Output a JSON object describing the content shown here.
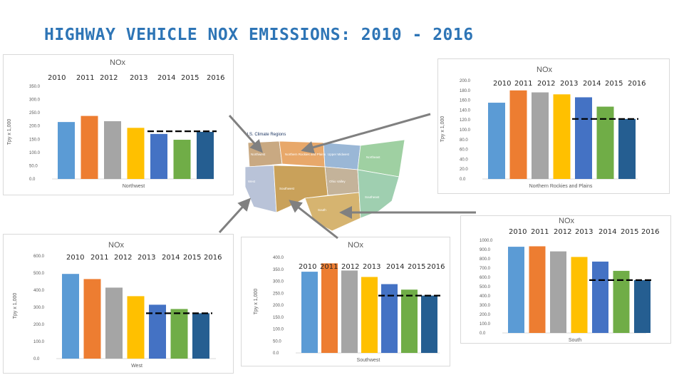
{
  "slide": {
    "title": "HIGHWAY VEHICLE NOX EMISSIONS: 2010 - 2016"
  },
  "years": [
    "2010",
    "2011",
    "2012",
    "2013",
    "2014",
    "2015",
    "2016"
  ],
  "colors": [
    "#5b9bd5",
    "#ed7d31",
    "#a5a5a5",
    "#ffc000",
    "#4472c4",
    "#70ad47",
    "#255e91"
  ],
  "map": {
    "title": "U.S. Climate Regions",
    "regions": [
      "Northwest",
      "Northern Rockies and Plains",
      "Upper Midwest",
      "Ohio Valley",
      "Northeast",
      "West",
      "Southwest",
      "South",
      "Southeast"
    ],
    "colors": [
      "#c9a982",
      "#e8a86a",
      "#9ab7d6",
      "#c4b39a",
      "#9fd0a2",
      "#b9c3d8",
      "#c9a15a",
      "#d6b470",
      "#9fcfb0"
    ]
  },
  "chart_data": [
    {
      "id": "northwest",
      "type": "bar",
      "title": "NOx",
      "xlabel": "Northwest",
      "ylabel": "Tpy x 1,000",
      "categories": [
        "2010",
        "2011",
        "2012",
        "2013",
        "2014",
        "2015",
        "2016"
      ],
      "values": [
        215,
        238,
        218,
        193,
        170,
        148,
        178
      ],
      "ylim": [
        0,
        350
      ],
      "yticks": [
        "0.0",
        "50.0",
        "100.0",
        "150.0",
        "200.0",
        "250.0",
        "300.0",
        "350.0"
      ],
      "reference_level": 180
    },
    {
      "id": "northern-rockies-plains",
      "type": "bar",
      "title": "NOx",
      "xlabel": "Northern Rockies and Plains",
      "ylabel": "Tpy x 1,000",
      "categories": [
        "2010",
        "2011",
        "2012",
        "2013",
        "2014",
        "2015",
        "2016"
      ],
      "values": [
        155,
        180,
        176,
        172,
        166,
        147,
        122
      ],
      "ylim": [
        0,
        200
      ],
      "yticks": [
        "0.0",
        "20.0",
        "40.0",
        "60.0",
        "80.0",
        "100.0",
        "120.0",
        "140.0",
        "160.0",
        "180.0",
        "200.0"
      ],
      "reference_level": 122
    },
    {
      "id": "west",
      "type": "bar",
      "title": "NOx",
      "xlabel": "West",
      "ylabel": "Tpy x 1,000",
      "categories": [
        "2010",
        "2011",
        "2012",
        "2013",
        "2014",
        "2015",
        "2016"
      ],
      "values": [
        495,
        465,
        415,
        365,
        315,
        290,
        265
      ],
      "ylim": [
        0,
        600
      ],
      "yticks": [
        "0.0",
        "100.0",
        "200.0",
        "300.0",
        "400.0",
        "500.0",
        "600.0"
      ],
      "reference_level": 265
    },
    {
      "id": "southwest",
      "type": "bar",
      "title": "NOx",
      "xlabel": "Southwest",
      "ylabel": "Tpy x 1,000",
      "categories": [
        "2010",
        "2011",
        "2012",
        "2013",
        "2014",
        "2015",
        "2016"
      ],
      "values": [
        340,
        375,
        345,
        318,
        288,
        265,
        240
      ],
      "ylim": [
        0,
        400
      ],
      "yticks": [
        "0.0",
        "50.0",
        "100.0",
        "150.0",
        "200.0",
        "250.0",
        "300.0",
        "350.0",
        "400.0"
      ],
      "reference_level": 240
    },
    {
      "id": "south",
      "type": "bar",
      "title": "NOx",
      "xlabel": "South",
      "ylabel": "",
      "categories": [
        "2010",
        "2011",
        "2012",
        "2013",
        "2014",
        "2015",
        "2016"
      ],
      "values": [
        930,
        935,
        880,
        820,
        770,
        670,
        570
      ],
      "ylim": [
        0,
        1000
      ],
      "yticks": [
        "0.0",
        "100.0",
        "200.0",
        "300.0",
        "400.0",
        "500.0",
        "600.0",
        "700.0",
        "800.0",
        "900.0",
        "1000.0"
      ],
      "reference_level": 570
    }
  ]
}
